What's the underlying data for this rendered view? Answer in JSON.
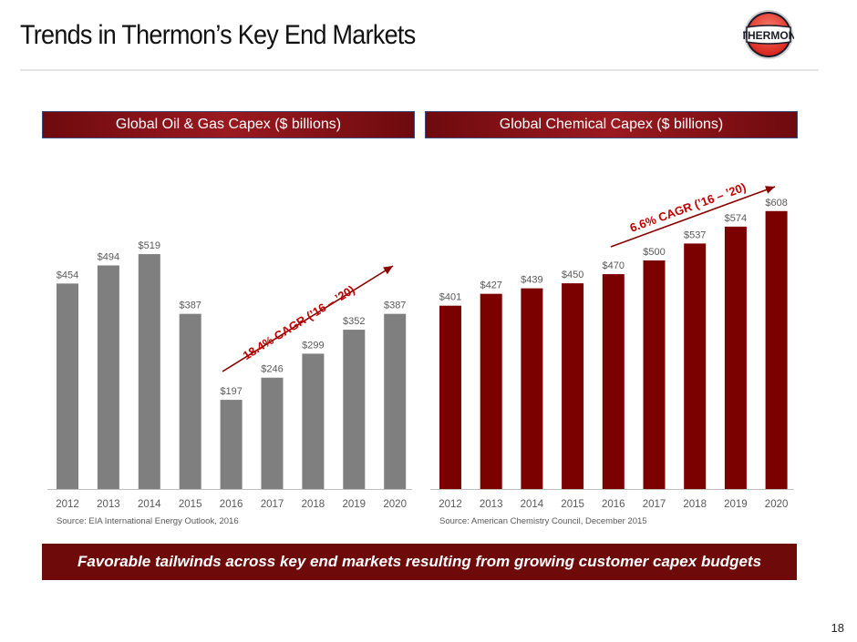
{
  "page": {
    "title": "Trends in Thermon’s Key End Markets",
    "logo_text": "THERMON",
    "banner": "Favorable tailwinds across key end markets resulting from growing customer capex budgets",
    "page_number": "18"
  },
  "colors": {
    "oil_bar": "#7f7f7f",
    "chem_bar": "#7b0000",
    "accent_red": "#c00000",
    "arrow": "#8b0000"
  },
  "chart_data": [
    {
      "type": "bar",
      "title": "Global Oil & Gas Capex ($ billions)",
      "categories": [
        "2012",
        "2013",
        "2014",
        "2015",
        "2016",
        "2017",
        "2018",
        "2019",
        "2020"
      ],
      "values": [
        454,
        494,
        519,
        387,
        197,
        246,
        299,
        352,
        387
      ],
      "data_labels": [
        "$454",
        "$494",
        "$519",
        "$387",
        "$197",
        "$246",
        "$299",
        "$352",
        "$387"
      ],
      "xlabel": "",
      "ylabel": "",
      "ylim": [
        0,
        600
      ],
      "grid": false,
      "annotation": "18.4% CAGR (’16 – ’20)",
      "source": "Source: EIA  International Energy Outlook, 2016"
    },
    {
      "type": "bar",
      "title": "Global Chemical Capex ($ billions)",
      "categories": [
        "2012",
        "2013",
        "2014",
        "2015",
        "2016",
        "2017",
        "2018",
        "2019",
        "2020"
      ],
      "values": [
        401,
        427,
        439,
        450,
        470,
        500,
        537,
        574,
        608
      ],
      "data_labels": [
        "$401",
        "$427",
        "$439",
        "$450",
        "$470",
        "$500",
        "$537",
        "$574",
        "$608"
      ],
      "xlabel": "",
      "ylabel": "",
      "ylim": [
        0,
        650
      ],
      "grid": false,
      "annotation": "6.6% CAGR (’16 – ’20)",
      "source": "Source: American Chemistry Council, December 2015"
    }
  ]
}
